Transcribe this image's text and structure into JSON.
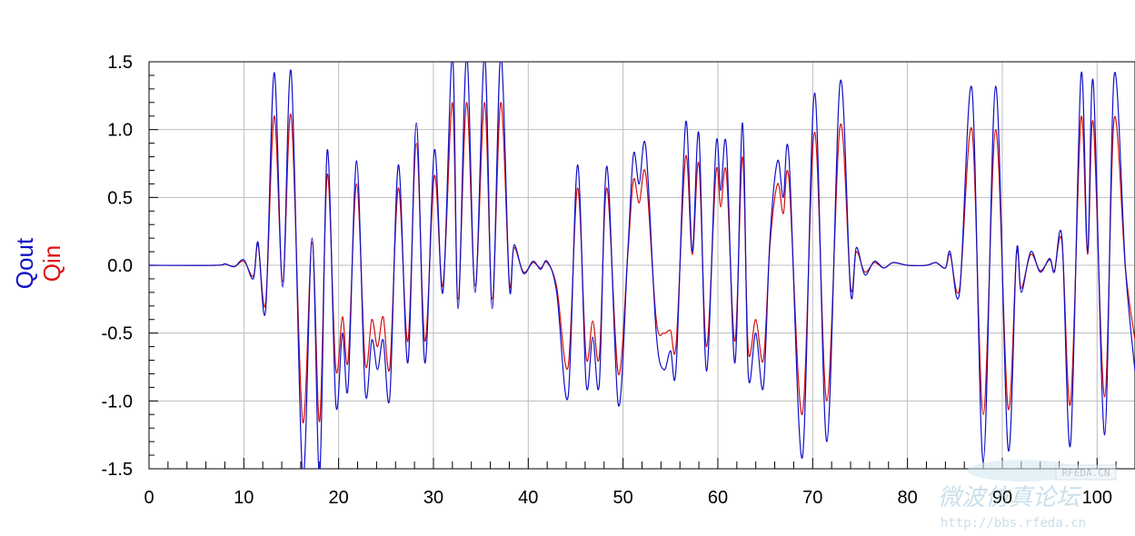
{
  "chart_data": {
    "type": "line",
    "title": "",
    "xlabel": "",
    "ylabels": [
      {
        "text": "Qout",
        "color": "#1010c8"
      },
      {
        "text": "Qin",
        "color": "#e01010"
      }
    ],
    "xlim": [
      0,
      104
    ],
    "ylim": [
      -1.5,
      1.5
    ],
    "xticks": [
      "0",
      "10",
      "20",
      "30",
      "40",
      "50",
      "60",
      "70",
      "80",
      "90",
      "100"
    ],
    "xtick_values": [
      0,
      10,
      20,
      30,
      40,
      50,
      60,
      70,
      80,
      90,
      100
    ],
    "yticks": [
      "1.5",
      "1.0",
      "0.5",
      "0.0",
      "-0.5",
      "-1.0",
      "-1.5"
    ],
    "ytick_values": [
      1.5,
      1.0,
      0.5,
      0.0,
      -0.5,
      -1.0,
      -1.5
    ],
    "grid": true,
    "series": [
      {
        "name": "Qout",
        "color": "#1010c8",
        "points": [
          [
            0,
            0
          ],
          [
            7,
            0
          ],
          [
            8,
            0.01
          ],
          [
            9,
            -0.01
          ],
          [
            10,
            0.04
          ],
          [
            11,
            -0.1
          ],
          [
            11.5,
            0.17
          ],
          [
            12.3,
            -0.33
          ],
          [
            13.2,
            1.42
          ],
          [
            14.1,
            -0.16
          ],
          [
            15,
            1.42
          ],
          [
            16.2,
            -1.55
          ],
          [
            17.2,
            0.2
          ],
          [
            18,
            -1.55
          ],
          [
            18.8,
            0.85
          ],
          [
            19.7,
            -1.02
          ],
          [
            20.4,
            -0.5
          ],
          [
            21,
            -0.9
          ],
          [
            21.9,
            0.77
          ],
          [
            22.8,
            -0.93
          ],
          [
            23.5,
            -0.55
          ],
          [
            24.1,
            -0.77
          ],
          [
            24.7,
            -0.55
          ],
          [
            25.4,
            -0.97
          ],
          [
            26.3,
            0.74
          ],
          [
            27.3,
            -0.72
          ],
          [
            28.2,
            1.05
          ],
          [
            29.1,
            -0.72
          ],
          [
            30.1,
            0.85
          ],
          [
            31,
            -0.2
          ],
          [
            32,
            1.55
          ],
          [
            32.6,
            -0.32
          ],
          [
            33.5,
            1.55
          ],
          [
            34.4,
            -0.2
          ],
          [
            35.4,
            1.55
          ],
          [
            36.2,
            -0.32
          ],
          [
            37.1,
            1.55
          ],
          [
            38,
            -0.15
          ],
          [
            38.5,
            0.15
          ],
          [
            39.5,
            -0.06
          ],
          [
            40.5,
            0.03
          ],
          [
            41.3,
            -0.03
          ],
          [
            42,
            0.03
          ],
          [
            43,
            -0.2
          ],
          [
            44.2,
            -0.97
          ],
          [
            45.2,
            0.74
          ],
          [
            46.1,
            -0.87
          ],
          [
            46.8,
            -0.53
          ],
          [
            47.5,
            -0.87
          ],
          [
            48.3,
            0.73
          ],
          [
            49.5,
            -1.03
          ],
          [
            50.5,
            0.1
          ],
          [
            51.1,
            0.82
          ],
          [
            51.7,
            0.6
          ],
          [
            52.4,
            0.87
          ],
          [
            53.5,
            -0.5
          ],
          [
            54.3,
            -0.77
          ],
          [
            55,
            -0.63
          ],
          [
            55.6,
            -0.75
          ],
          [
            56.6,
            1.05
          ],
          [
            57.3,
            0.1
          ],
          [
            58,
            0.97
          ],
          [
            58.8,
            -0.78
          ],
          [
            59.8,
            0.88
          ],
          [
            60.3,
            0.55
          ],
          [
            60.9,
            0.88
          ],
          [
            61.8,
            -0.72
          ],
          [
            62.6,
            1.05
          ],
          [
            63.2,
            -0.8
          ],
          [
            64,
            -0.5
          ],
          [
            64.8,
            -0.9
          ],
          [
            65.5,
            0.2
          ],
          [
            66.3,
            0.77
          ],
          [
            66.9,
            0.5
          ],
          [
            67.5,
            0.8
          ],
          [
            68.9,
            -1.42
          ],
          [
            70.2,
            1.27
          ],
          [
            71.5,
            -1.3
          ],
          [
            72.9,
            1.35
          ],
          [
            74,
            -0.2
          ],
          [
            74.6,
            0.13
          ],
          [
            75.5,
            -0.07
          ],
          [
            76.5,
            0.03
          ],
          [
            77.5,
            -0.02
          ],
          [
            78.5,
            0.02
          ],
          [
            80,
            0
          ],
          [
            82,
            0.0
          ],
          [
            83,
            0.02
          ],
          [
            84,
            -0.02
          ],
          [
            84.5,
            0.1
          ],
          [
            85.5,
            -0.2
          ],
          [
            86.8,
            1.3
          ],
          [
            88,
            -1.45
          ],
          [
            89.3,
            1.32
          ],
          [
            90.6,
            -1.35
          ],
          [
            91.5,
            0.1
          ],
          [
            92,
            -0.2
          ],
          [
            93,
            0.1
          ],
          [
            94,
            -0.05
          ],
          [
            95,
            0.05
          ],
          [
            95.5,
            -0.05
          ],
          [
            96.3,
            0.2
          ],
          [
            97.2,
            -1.32
          ],
          [
            98.3,
            1.4
          ],
          [
            99,
            0.1
          ],
          [
            99.6,
            1.35
          ],
          [
            100.8,
            -1.25
          ],
          [
            101.8,
            1.4
          ],
          [
            103,
            -0.03
          ],
          [
            104,
            -0.78
          ]
        ]
      },
      {
        "name": "Qin",
        "color": "#d01010",
        "points": [
          [
            0,
            0
          ],
          [
            7,
            0
          ],
          [
            8,
            0.01
          ],
          [
            9,
            -0.01
          ],
          [
            10,
            0.03
          ],
          [
            11,
            -0.08
          ],
          [
            11.5,
            0.15
          ],
          [
            12.3,
            -0.28
          ],
          [
            13.2,
            1.1
          ],
          [
            14.1,
            -0.12
          ],
          [
            15,
            1.1
          ],
          [
            16.2,
            -1.15
          ],
          [
            17.2,
            0.17
          ],
          [
            18,
            -1.15
          ],
          [
            18.8,
            0.67
          ],
          [
            19.7,
            -0.76
          ],
          [
            20.4,
            -0.38
          ],
          [
            21,
            -0.7
          ],
          [
            21.9,
            0.6
          ],
          [
            22.8,
            -0.72
          ],
          [
            23.5,
            -0.4
          ],
          [
            24.1,
            -0.6
          ],
          [
            24.7,
            -0.38
          ],
          [
            25.4,
            -0.75
          ],
          [
            26.3,
            0.57
          ],
          [
            27.3,
            -0.56
          ],
          [
            28.2,
            0.9
          ],
          [
            29.1,
            -0.56
          ],
          [
            30.1,
            0.66
          ],
          [
            31,
            -0.15
          ],
          [
            32,
            1.2
          ],
          [
            32.6,
            -0.25
          ],
          [
            33.5,
            1.2
          ],
          [
            34.4,
            -0.15
          ],
          [
            35.4,
            1.2
          ],
          [
            36.2,
            -0.25
          ],
          [
            37.1,
            1.2
          ],
          [
            38,
            -0.12
          ],
          [
            38.5,
            0.13
          ],
          [
            39.5,
            -0.05
          ],
          [
            40.5,
            0.02
          ],
          [
            41.3,
            -0.02
          ],
          [
            42,
            0.02
          ],
          [
            43,
            -0.16
          ],
          [
            44.2,
            -0.75
          ],
          [
            45.2,
            0.57
          ],
          [
            46.1,
            -0.67
          ],
          [
            46.8,
            -0.41
          ],
          [
            47.5,
            -0.67
          ],
          [
            48.3,
            0.57
          ],
          [
            49.5,
            -0.8
          ],
          [
            50.5,
            0.08
          ],
          [
            51.1,
            0.63
          ],
          [
            51.7,
            0.46
          ],
          [
            52.4,
            0.67
          ],
          [
            53.5,
            -0.4
          ],
          [
            54.3,
            -0.5
          ],
          [
            55,
            -0.48
          ],
          [
            55.6,
            -0.58
          ],
          [
            56.6,
            0.8
          ],
          [
            57.3,
            0.08
          ],
          [
            58,
            0.75
          ],
          [
            58.8,
            -0.6
          ],
          [
            59.8,
            0.68
          ],
          [
            60.3,
            0.43
          ],
          [
            60.9,
            0.68
          ],
          [
            61.8,
            -0.56
          ],
          [
            62.6,
            0.8
          ],
          [
            63.2,
            -0.62
          ],
          [
            64,
            -0.4
          ],
          [
            64.8,
            -0.7
          ],
          [
            65.5,
            0.15
          ],
          [
            66.3,
            0.6
          ],
          [
            66.9,
            0.38
          ],
          [
            67.5,
            0.63
          ],
          [
            68.9,
            -1.1
          ],
          [
            70.2,
            0.98
          ],
          [
            71.5,
            -1.0
          ],
          [
            72.9,
            1.03
          ],
          [
            74,
            -0.16
          ],
          [
            74.6,
            0.1
          ],
          [
            75.5,
            -0.05
          ],
          [
            76.5,
            0.02
          ],
          [
            77.5,
            -0.02
          ],
          [
            78.5,
            0.02
          ],
          [
            80,
            0
          ],
          [
            82,
            0.0
          ],
          [
            83,
            0.02
          ],
          [
            84,
            -0.02
          ],
          [
            84.5,
            0.08
          ],
          [
            85.5,
            -0.17
          ],
          [
            86.8,
            1.0
          ],
          [
            88,
            -1.1
          ],
          [
            89.3,
            1.0
          ],
          [
            90.6,
            -1.05
          ],
          [
            91.5,
            0.08
          ],
          [
            92,
            -0.17
          ],
          [
            93,
            0.08
          ],
          [
            94,
            -0.04
          ],
          [
            95,
            0.04
          ],
          [
            95.5,
            -0.04
          ],
          [
            96.3,
            0.17
          ],
          [
            97.2,
            -1.02
          ],
          [
            98.3,
            1.08
          ],
          [
            99,
            0.08
          ],
          [
            99.6,
            1.05
          ],
          [
            100.8,
            -0.97
          ],
          [
            101.8,
            1.08
          ],
          [
            103,
            -0.03
          ],
          [
            104,
            -0.55
          ]
        ]
      }
    ]
  },
  "watermark": {
    "line1": "微波仿真论坛",
    "line2": "http://bbs.rfeda.cn",
    "badge": "RFEDA.CN"
  }
}
